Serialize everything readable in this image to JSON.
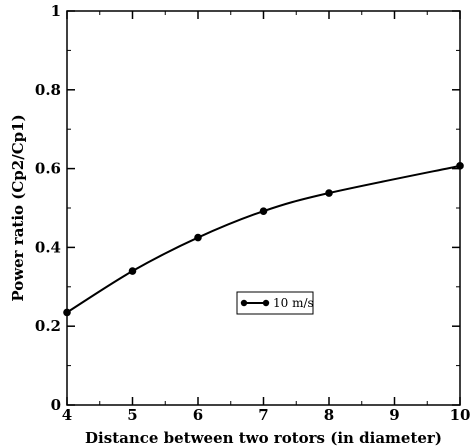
{
  "chart_data": {
    "type": "line",
    "title": "",
    "xlabel": "Distance between two rotors (in diameter)",
    "ylabel": "Power ratio (Cp2/Cp1)",
    "xlim": [
      4,
      10
    ],
    "ylim": [
      0,
      1
    ],
    "x_ticks": [
      4,
      5,
      6,
      7,
      8,
      9,
      10
    ],
    "y_ticks": [
      0,
      0.2,
      0.4,
      0.6,
      0.8,
      1
    ],
    "x_tick_labels": [
      "4",
      "5",
      "6",
      "7",
      "8",
      "9",
      "10"
    ],
    "y_tick_labels": [
      "0",
      "0.2",
      "0.4",
      "0.6",
      "0.8",
      "1"
    ],
    "grid": false,
    "legend_position": "center-right",
    "series": [
      {
        "name": "10 m/s",
        "color": "#000000",
        "marker": "circle",
        "x": [
          4,
          5,
          6,
          7,
          8,
          10
        ],
        "y": [
          0.235,
          0.34,
          0.425,
          0.492,
          0.538,
          0.607
        ]
      }
    ]
  }
}
